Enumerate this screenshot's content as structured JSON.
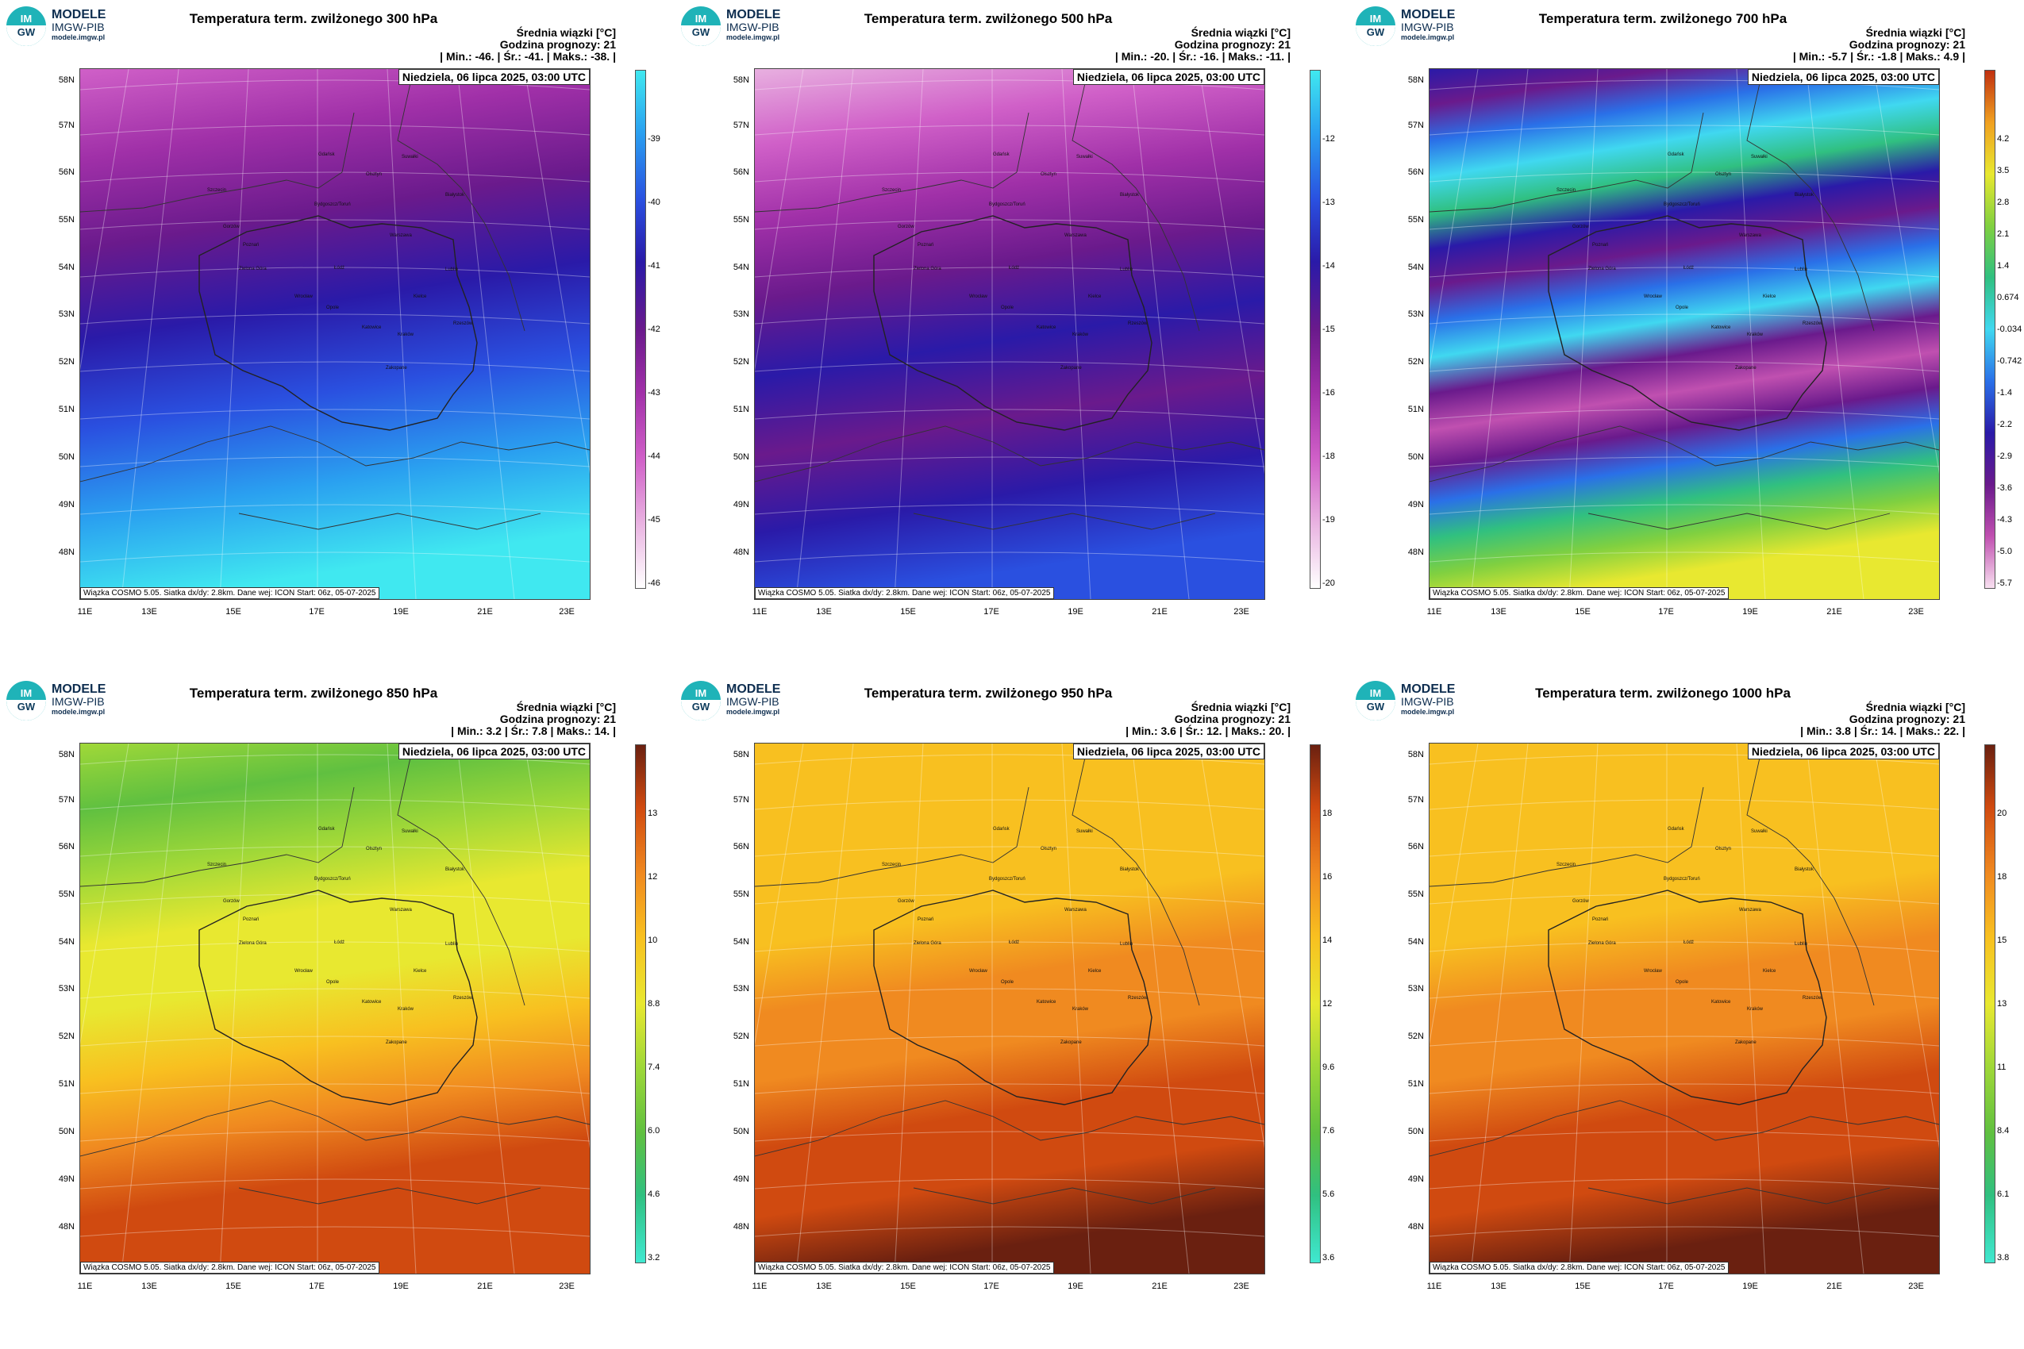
{
  "branding": {
    "brand_name": "MODELE",
    "org": "IMGW-PIB",
    "site": "modele.imgw.pl",
    "logo_top": "IM",
    "logo_bottom": "GW"
  },
  "common": {
    "info_label": "Średnia wiązki [°C]",
    "forecast_hour": "Godzina prognozy: 21",
    "date": "Niedziela, 06 lipca 2025, 03:00 UTC",
    "footer": "Wiązka COSMO 5.05. Siatka dx/dy: 2.8km. Dane wej: ICON Start: 06z, 05-07-2025",
    "lat_labels": [
      "58N",
      "57N",
      "56N",
      "55N",
      "54N",
      "53N",
      "52N",
      "51N",
      "50N",
      "49N",
      "48N"
    ],
    "lon_labels": [
      "11E",
      "13E",
      "15E",
      "17E",
      "19E",
      "21E",
      "23E"
    ],
    "cities": [
      "Gdańsk",
      "Olsztyn",
      "Suwałki",
      "Szczecin",
      "Bydgoszcz/Toruń",
      "Białystok",
      "Gorzów",
      "Poznań",
      "Warszawa",
      "Zielona Góra",
      "Łódź",
      "Lublin",
      "Wrocław",
      "Kielce",
      "Opole",
      "Rzeszów",
      "Katowice",
      "Kraków",
      "Zakopane"
    ]
  },
  "panels": [
    {
      "title": "Temperatura term. zwilżonego 300 hPa",
      "stats": "| Min.:    -46. | Śr.:    -41. | Maks.:    -38. |",
      "colorbar": [
        "-39",
        "-40",
        "-41",
        "-42",
        "-43",
        "-44",
        "-45",
        "-46"
      ],
      "palette": "cold",
      "colors": [
        "#ffffff",
        "#e8b0e0",
        "#d060c8",
        "#a030a8",
        "#6a1a8c",
        "#2a1aa8",
        "#2a50e0",
        "#2aa0f0",
        "#40e8f0"
      ]
    },
    {
      "title": "Temperatura term. zwilżonego 500 hPa",
      "stats": "| Min.:    -20. | Śr.:    -16. | Maks.:    -11. |",
      "colorbar": [
        "-12",
        "-13",
        "-14",
        "-15",
        "-16",
        "-18",
        "-19",
        "-20"
      ],
      "palette": "cold",
      "colors": [
        "#ffffff",
        "#e8b0e0",
        "#d060c8",
        "#a030a8",
        "#6a1a8c",
        "#2a1aa8",
        "#2a50e0",
        "#2aa0f0",
        "#40e8f0"
      ]
    },
    {
      "title": "Temperatura term. zwilżonego 700 hPa",
      "stats": "| Min.:    -5.7 | Śr.:    -1.8 | Maks.:    4.9 |",
      "colorbar": [
        "4.2",
        "3.5",
        "2.8",
        "2.1",
        "1.4",
        "0.674",
        "-0.034",
        "-0.742",
        "-1.4",
        "-2.2",
        "-2.9",
        "-3.6",
        "-4.3",
        "-5.0",
        "-5.7"
      ],
      "palette": "mixed",
      "colors": [
        "#f8e0f0",
        "#c050b0",
        "#6a1a8c",
        "#2a1aa8",
        "#2a70e8",
        "#40d8f0",
        "#30c080",
        "#80d040",
        "#e8e830",
        "#f0a020",
        "#c03010"
      ]
    },
    {
      "title": "Temperatura term. zwilżonego 850 hPa",
      "stats": "| Min.:    3.2 | Śr.:    7.8 | Maks.:    14. |",
      "colorbar": [
        "13",
        "12",
        "10",
        "8.8",
        "7.4",
        "6.0",
        "4.6",
        "3.2"
      ],
      "palette": "warm",
      "colors": [
        "#40e8d0",
        "#30c080",
        "#60c040",
        "#a0d838",
        "#e8e830",
        "#f8c020",
        "#f08a20",
        "#d04a10",
        "#6a2010"
      ]
    },
    {
      "title": "Temperatura term. zwilżonego 950 hPa",
      "stats": "| Min.:    3.6 | Śr.:    12. | Maks.:    20. |",
      "colorbar": [
        "18",
        "16",
        "14",
        "12",
        "9.6",
        "7.6",
        "5.6",
        "3.6"
      ],
      "palette": "warm",
      "colors": [
        "#40e8d0",
        "#30c080",
        "#60c040",
        "#a0d838",
        "#e8e830",
        "#f8c020",
        "#f08a20",
        "#d04a10",
        "#6a2010"
      ]
    },
    {
      "title": "Temperatura term. zwilżonego 1000 hPa",
      "stats": "| Min.:    3.8 | Śr.:    14. | Maks.:    22. |",
      "colorbar": [
        "20",
        "18",
        "15",
        "13",
        "11",
        "8.4",
        "6.1",
        "3.8"
      ],
      "palette": "warm",
      "colors": [
        "#40e8d0",
        "#30c080",
        "#60c040",
        "#a0d838",
        "#e8e830",
        "#f8c020",
        "#f08a20",
        "#d04a10",
        "#6a2010"
      ]
    }
  ]
}
